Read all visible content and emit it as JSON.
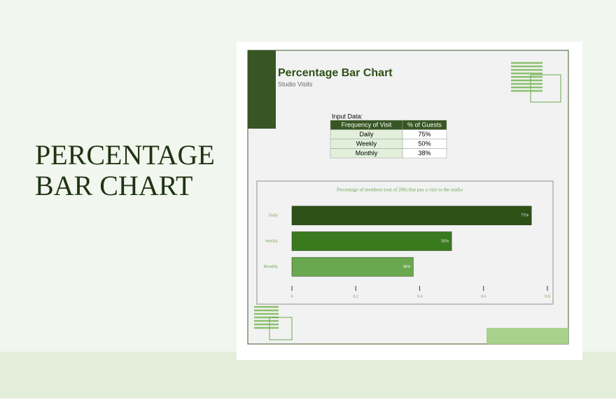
{
  "banner": {
    "lines": [
      "PERCENTAGE",
      "BAR CHART"
    ]
  },
  "sheet": {
    "title": "Percentage Bar Chart",
    "subtitle": "Studio Visits",
    "table": {
      "caption": "Input Data:",
      "header": [
        "Frequency of Visit",
        "% of Guests"
      ],
      "rows": [
        [
          "Daily",
          "75%"
        ],
        [
          "Weekly",
          "50%"
        ],
        [
          "Monthly",
          "38%"
        ]
      ]
    }
  },
  "chart_data": {
    "type": "hbar",
    "title": "Percentage of members (out of 200) that pay a visit to the studio",
    "categories": [
      "Daily",
      "Weekly",
      "Monthly"
    ],
    "values": [
      0.75,
      0.5,
      0.38
    ],
    "value_labels": [
      "75%",
      "50%",
      "38%"
    ],
    "colors": [
      "#2d5016",
      "#3a7a1e",
      "#6aa84f"
    ],
    "xlim": [
      0,
      0.8
    ],
    "xticks": [
      0,
      0.2,
      0.4,
      0.6,
      0.8
    ]
  }
}
